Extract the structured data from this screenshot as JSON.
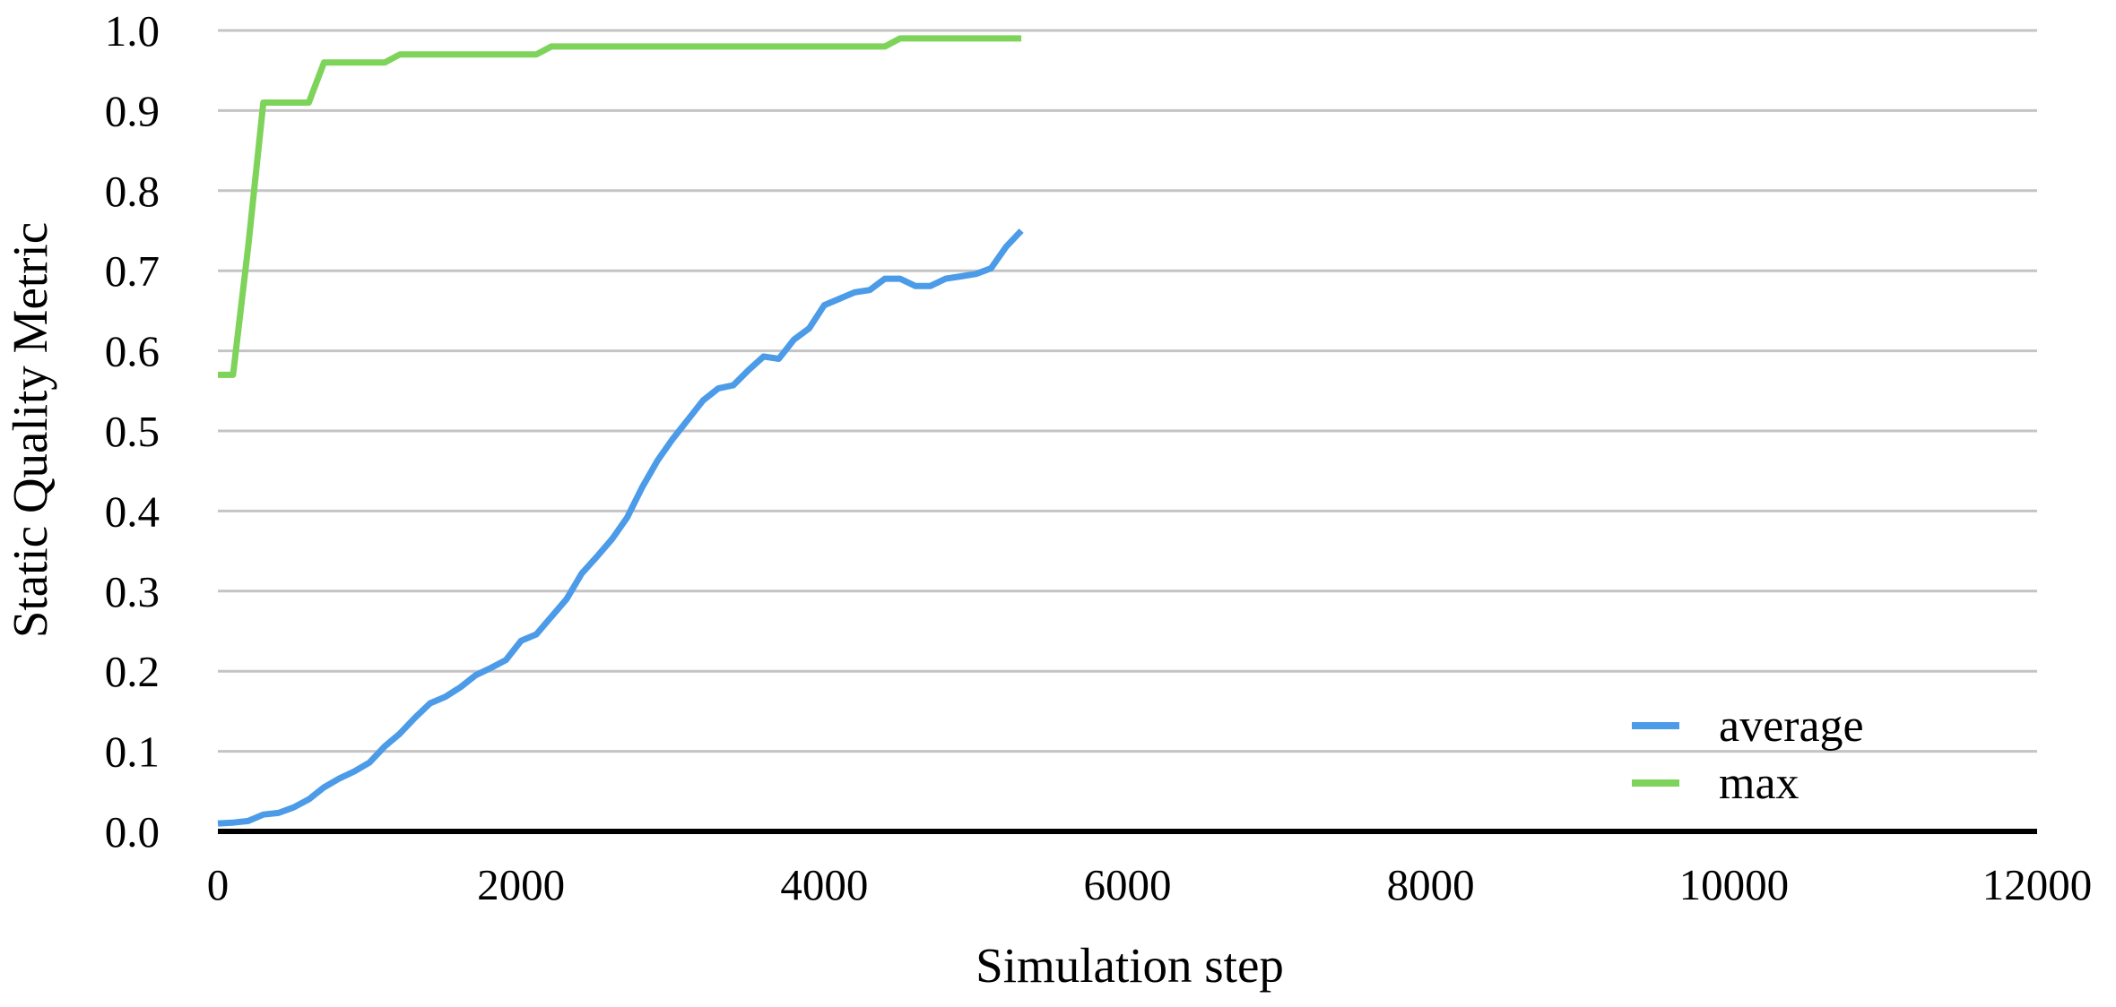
{
  "chart_data": {
    "type": "line",
    "title": "",
    "xlabel": "Simulation step",
    "ylabel": "Static Quality Metric",
    "xlim": [
      0,
      12000
    ],
    "ylim": [
      0,
      1.0
    ],
    "x_ticks": [
      "0",
      "2000",
      "4000",
      "6000",
      "8000",
      "10000",
      "12000"
    ],
    "y_ticks": [
      "0.0",
      "0.1",
      "0.2",
      "0.3",
      "0.4",
      "0.5",
      "0.6",
      "0.7",
      "0.8",
      "0.9",
      "1.0"
    ],
    "grid": true,
    "legend_position": "bottom-right",
    "series": [
      {
        "name": "average",
        "color": "#4c9be8",
        "x": [
          0,
          100,
          200,
          300,
          400,
          500,
          600,
          700,
          800,
          900,
          1000,
          1100,
          1200,
          1300,
          1400,
          1500,
          1600,
          1700,
          1800,
          1900,
          2000,
          2100,
          2200,
          2300,
          2400,
          2500,
          2600,
          2700,
          2800,
          2900,
          3000,
          3100,
          3200,
          3300,
          3400,
          3500,
          3600,
          3700,
          3800,
          3900,
          4000,
          4100,
          4200,
          4300,
          4400,
          4500,
          4600,
          4700,
          4800,
          4900,
          5000,
          5100,
          5200,
          5300
        ],
        "y": [
          0.01,
          0.011,
          0.013,
          0.021,
          0.023,
          0.03,
          0.04,
          0.055,
          0.066,
          0.075,
          0.086,
          0.106,
          0.122,
          0.142,
          0.16,
          0.168,
          0.18,
          0.195,
          0.204,
          0.214,
          0.238,
          0.246,
          0.268,
          0.29,
          0.322,
          0.343,
          0.365,
          0.392,
          0.43,
          0.463,
          0.49,
          0.514,
          0.538,
          0.553,
          0.557,
          0.576,
          0.593,
          0.59,
          0.614,
          0.628,
          0.657,
          0.665,
          0.673,
          0.676,
          0.69,
          0.69,
          0.681,
          0.681,
          0.69,
          0.693,
          0.696,
          0.703,
          0.73,
          0.75
        ]
      },
      {
        "name": "max",
        "color": "#7ed35a",
        "x": [
          0,
          100,
          200,
          300,
          400,
          500,
          600,
          700,
          800,
          900,
          1000,
          1100,
          1200,
          1300,
          1400,
          1500,
          1600,
          1700,
          1800,
          1900,
          2000,
          2100,
          2200,
          2300,
          2400,
          2500,
          2600,
          2700,
          2800,
          2900,
          3000,
          3100,
          3200,
          3300,
          3400,
          3500,
          3600,
          3700,
          3800,
          3900,
          4000,
          4100,
          4200,
          4300,
          4400,
          4500,
          4600,
          4700,
          4800,
          4900,
          5000,
          5100,
          5200,
          5300
        ],
        "y": [
          0.57,
          0.57,
          0.73,
          0.91,
          0.91,
          0.91,
          0.91,
          0.96,
          0.96,
          0.96,
          0.96,
          0.96,
          0.97,
          0.97,
          0.97,
          0.97,
          0.97,
          0.97,
          0.97,
          0.97,
          0.97,
          0.97,
          0.98,
          0.98,
          0.98,
          0.98,
          0.98,
          0.98,
          0.98,
          0.98,
          0.98,
          0.98,
          0.98,
          0.98,
          0.98,
          0.98,
          0.98,
          0.98,
          0.98,
          0.98,
          0.98,
          0.98,
          0.98,
          0.98,
          0.98,
          0.99,
          0.99,
          0.99,
          0.99,
          0.99,
          0.99,
          0.99,
          0.99,
          0.99
        ]
      }
    ]
  }
}
